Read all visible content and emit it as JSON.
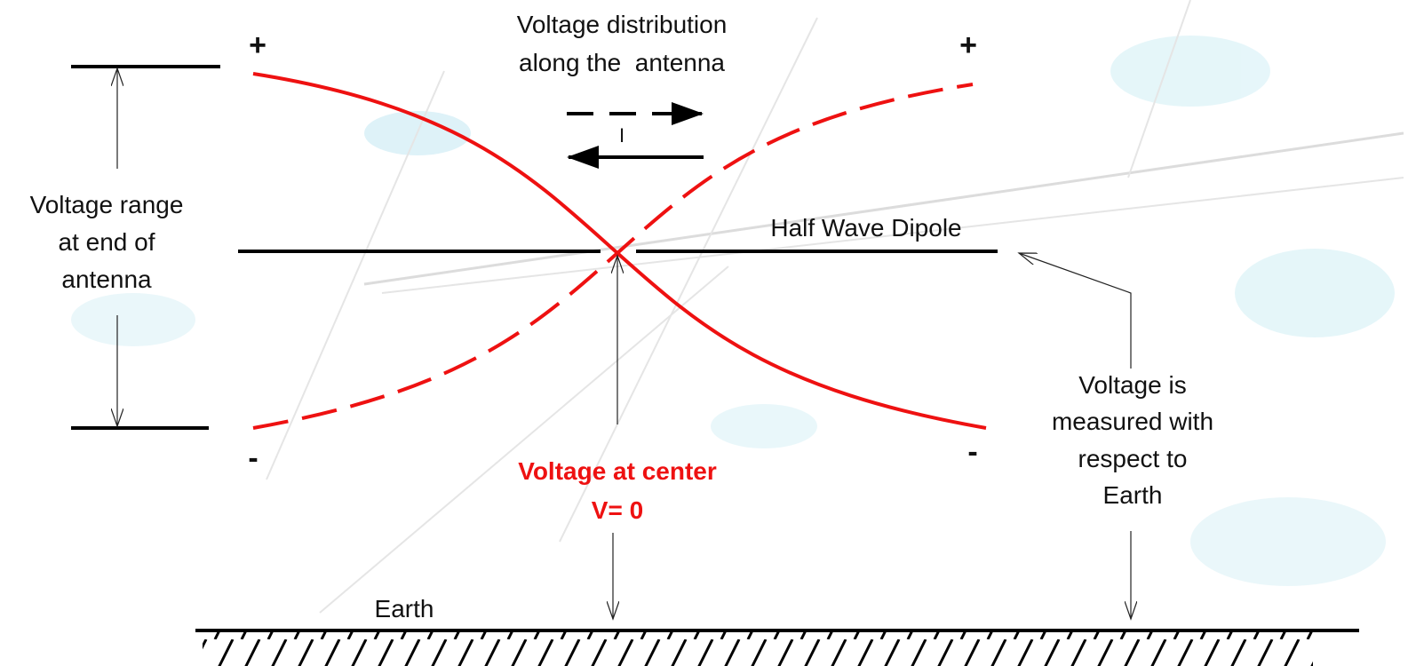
{
  "title_lines": [
    "Voltage distribution",
    "along the  antenna"
  ],
  "current_label": "I",
  "end_signs": {
    "top_left": "+",
    "top_right": "+",
    "bottom_left": "-",
    "bottom_right": "-"
  },
  "range_label": [
    "Voltage range",
    "at end of",
    "antenna"
  ],
  "dipole_label": "Half Wave Dipole",
  "center_label": [
    "Voltage at center",
    "V= 0"
  ],
  "earth_reference_label": [
    "Voltage is",
    "measured with",
    "respect to",
    "Earth"
  ],
  "earth_label": "Earth"
}
